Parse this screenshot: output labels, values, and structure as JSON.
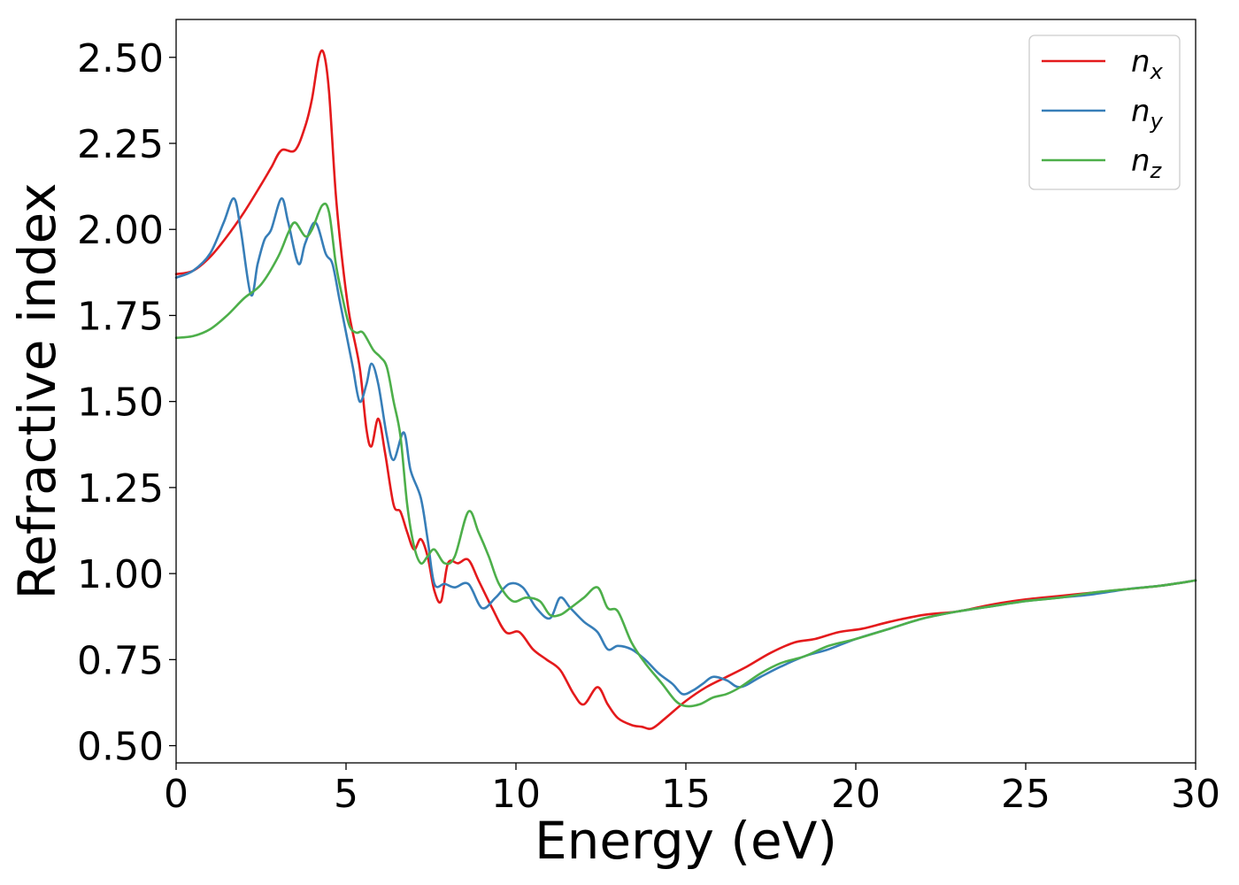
{
  "chart_data": {
    "type": "line",
    "xlabel": "Energy (eV)",
    "ylabel": "Refractive index",
    "xlim": [
      0,
      30
    ],
    "ylim": [
      0.45,
      2.61
    ],
    "xticks": [
      0,
      5,
      10,
      15,
      20,
      25,
      30
    ],
    "xtick_labels": [
      "0",
      "5",
      "10",
      "15",
      "20",
      "25",
      "30"
    ],
    "yticks": [
      0.5,
      0.75,
      1.0,
      1.25,
      1.5,
      1.75,
      2.0,
      2.25,
      2.5
    ],
    "ytick_labels": [
      "0.50",
      "0.75",
      "1.00",
      "1.25",
      "1.50",
      "1.75",
      "2.00",
      "2.25",
      "2.50"
    ],
    "grid": false,
    "legend_position": "top-right",
    "series": [
      {
        "name": "n",
        "subscript": "x",
        "color": "#e41a1c",
        "points": [
          [
            0,
            1.87
          ],
          [
            0.5,
            1.88
          ],
          [
            1,
            1.92
          ],
          [
            1.5,
            1.98
          ],
          [
            2,
            2.05
          ],
          [
            2.5,
            2.13
          ],
          [
            2.8,
            2.18
          ],
          [
            3.1,
            2.23
          ],
          [
            3.5,
            2.23
          ],
          [
            3.8,
            2.3
          ],
          [
            4.0,
            2.38
          ],
          [
            4.2,
            2.5
          ],
          [
            4.35,
            2.51
          ],
          [
            4.5,
            2.4
          ],
          [
            4.7,
            2.1
          ],
          [
            4.9,
            1.9
          ],
          [
            5.1,
            1.75
          ],
          [
            5.4,
            1.6
          ],
          [
            5.6,
            1.42
          ],
          [
            5.75,
            1.37
          ],
          [
            5.95,
            1.45
          ],
          [
            6.15,
            1.35
          ],
          [
            6.4,
            1.2
          ],
          [
            6.6,
            1.18
          ],
          [
            6.8,
            1.12
          ],
          [
            7.0,
            1.07
          ],
          [
            7.2,
            1.1
          ],
          [
            7.4,
            1.05
          ],
          [
            7.6,
            0.95
          ],
          [
            7.8,
            0.92
          ],
          [
            8.0,
            1.03
          ],
          [
            8.3,
            1.03
          ],
          [
            8.6,
            1.04
          ],
          [
            8.9,
            0.98
          ],
          [
            9.3,
            0.9
          ],
          [
            9.7,
            0.83
          ],
          [
            10.1,
            0.83
          ],
          [
            10.5,
            0.78
          ],
          [
            10.9,
            0.75
          ],
          [
            11.3,
            0.72
          ],
          [
            11.7,
            0.65
          ],
          [
            12.0,
            0.62
          ],
          [
            12.4,
            0.67
          ],
          [
            12.7,
            0.62
          ],
          [
            13.0,
            0.58
          ],
          [
            13.4,
            0.56
          ],
          [
            13.7,
            0.555
          ],
          [
            14.0,
            0.55
          ],
          [
            14.4,
            0.58
          ],
          [
            15.0,
            0.63
          ],
          [
            15.6,
            0.67
          ],
          [
            16.2,
            0.7
          ],
          [
            16.8,
            0.73
          ],
          [
            17.5,
            0.77
          ],
          [
            18.2,
            0.8
          ],
          [
            18.8,
            0.81
          ],
          [
            19.5,
            0.83
          ],
          [
            20.2,
            0.84
          ],
          [
            21.0,
            0.86
          ],
          [
            22.0,
            0.88
          ],
          [
            23.0,
            0.89
          ],
          [
            24.0,
            0.91
          ],
          [
            25.0,
            0.925
          ],
          [
            26.0,
            0.935
          ],
          [
            27.0,
            0.945
          ],
          [
            28.0,
            0.955
          ],
          [
            29.0,
            0.965
          ],
          [
            30.0,
            0.98
          ]
        ]
      },
      {
        "name": "n",
        "subscript": "y",
        "color": "#377eb8",
        "points": [
          [
            0,
            1.86
          ],
          [
            0.5,
            1.88
          ],
          [
            1.0,
            1.93
          ],
          [
            1.4,
            2.02
          ],
          [
            1.7,
            2.09
          ],
          [
            1.9,
            2.0
          ],
          [
            2.2,
            1.81
          ],
          [
            2.4,
            1.9
          ],
          [
            2.6,
            1.97
          ],
          [
            2.8,
            2.0
          ],
          [
            3.1,
            2.09
          ],
          [
            3.3,
            2.02
          ],
          [
            3.6,
            1.9
          ],
          [
            3.8,
            1.96
          ],
          [
            4.1,
            2.02
          ],
          [
            4.4,
            1.93
          ],
          [
            4.6,
            1.9
          ],
          [
            4.8,
            1.8
          ],
          [
            5.0,
            1.7
          ],
          [
            5.2,
            1.6
          ],
          [
            5.4,
            1.5
          ],
          [
            5.6,
            1.55
          ],
          [
            5.75,
            1.61
          ],
          [
            5.95,
            1.55
          ],
          [
            6.2,
            1.4
          ],
          [
            6.4,
            1.33
          ],
          [
            6.7,
            1.41
          ],
          [
            6.9,
            1.3
          ],
          [
            7.2,
            1.22
          ],
          [
            7.4,
            1.1
          ],
          [
            7.6,
            0.97
          ],
          [
            7.9,
            0.97
          ],
          [
            8.2,
            0.96
          ],
          [
            8.6,
            0.97
          ],
          [
            9.0,
            0.9
          ],
          [
            9.4,
            0.93
          ],
          [
            9.8,
            0.97
          ],
          [
            10.2,
            0.96
          ],
          [
            10.6,
            0.9
          ],
          [
            11.0,
            0.87
          ],
          [
            11.3,
            0.93
          ],
          [
            11.6,
            0.9
          ],
          [
            12.0,
            0.86
          ],
          [
            12.4,
            0.83
          ],
          [
            12.7,
            0.78
          ],
          [
            13.0,
            0.79
          ],
          [
            13.4,
            0.78
          ],
          [
            13.8,
            0.75
          ],
          [
            14.2,
            0.71
          ],
          [
            14.6,
            0.68
          ],
          [
            14.9,
            0.65
          ],
          [
            15.2,
            0.66
          ],
          [
            15.5,
            0.68
          ],
          [
            15.8,
            0.7
          ],
          [
            16.2,
            0.69
          ],
          [
            16.6,
            0.67
          ],
          [
            17.2,
            0.7
          ],
          [
            17.8,
            0.73
          ],
          [
            18.5,
            0.76
          ],
          [
            19.2,
            0.78
          ],
          [
            20.0,
            0.81
          ],
          [
            21.0,
            0.84
          ],
          [
            22.0,
            0.87
          ],
          [
            23.0,
            0.89
          ],
          [
            24.0,
            0.905
          ],
          [
            25.0,
            0.92
          ],
          [
            26.0,
            0.93
          ],
          [
            27.0,
            0.94
          ],
          [
            28.0,
            0.955
          ],
          [
            29.0,
            0.965
          ],
          [
            30.0,
            0.98
          ]
        ]
      },
      {
        "name": "n",
        "subscript": "z",
        "color": "#4daf4a",
        "points": [
          [
            0,
            1.685
          ],
          [
            0.5,
            1.69
          ],
          [
            1.0,
            1.71
          ],
          [
            1.5,
            1.75
          ],
          [
            2.0,
            1.8
          ],
          [
            2.5,
            1.84
          ],
          [
            3.0,
            1.92
          ],
          [
            3.3,
            1.99
          ],
          [
            3.5,
            2.02
          ],
          [
            3.8,
            1.98
          ],
          [
            4.0,
            2.0
          ],
          [
            4.3,
            2.07
          ],
          [
            4.5,
            2.05
          ],
          [
            4.7,
            1.9
          ],
          [
            4.9,
            1.8
          ],
          [
            5.1,
            1.72
          ],
          [
            5.3,
            1.7
          ],
          [
            5.5,
            1.7
          ],
          [
            5.8,
            1.65
          ],
          [
            6.0,
            1.63
          ],
          [
            6.2,
            1.6
          ],
          [
            6.4,
            1.5
          ],
          [
            6.6,
            1.4
          ],
          [
            6.8,
            1.2
          ],
          [
            7.0,
            1.08
          ],
          [
            7.2,
            1.03
          ],
          [
            7.4,
            1.05
          ],
          [
            7.6,
            1.07
          ],
          [
            7.9,
            1.03
          ],
          [
            8.2,
            1.05
          ],
          [
            8.6,
            1.18
          ],
          [
            8.9,
            1.12
          ],
          [
            9.2,
            1.05
          ],
          [
            9.5,
            0.97
          ],
          [
            9.9,
            0.92
          ],
          [
            10.3,
            0.93
          ],
          [
            10.7,
            0.92
          ],
          [
            11.0,
            0.88
          ],
          [
            11.3,
            0.88
          ],
          [
            11.6,
            0.9
          ],
          [
            12.0,
            0.93
          ],
          [
            12.4,
            0.96
          ],
          [
            12.7,
            0.9
          ],
          [
            13.0,
            0.89
          ],
          [
            13.4,
            0.8
          ],
          [
            13.8,
            0.74
          ],
          [
            14.3,
            0.68
          ],
          [
            14.7,
            0.63
          ],
          [
            15.0,
            0.615
          ],
          [
            15.4,
            0.62
          ],
          [
            15.8,
            0.64
          ],
          [
            16.2,
            0.65
          ],
          [
            16.6,
            0.67
          ],
          [
            17.2,
            0.71
          ],
          [
            17.8,
            0.74
          ],
          [
            18.5,
            0.76
          ],
          [
            19.2,
            0.79
          ],
          [
            20.0,
            0.81
          ],
          [
            21.0,
            0.84
          ],
          [
            22.0,
            0.87
          ],
          [
            23.0,
            0.89
          ],
          [
            24.0,
            0.905
          ],
          [
            25.0,
            0.92
          ],
          [
            26.0,
            0.93
          ],
          [
            27.0,
            0.945
          ],
          [
            28.0,
            0.955
          ],
          [
            29.0,
            0.965
          ],
          [
            30.0,
            0.98
          ]
        ]
      }
    ]
  }
}
